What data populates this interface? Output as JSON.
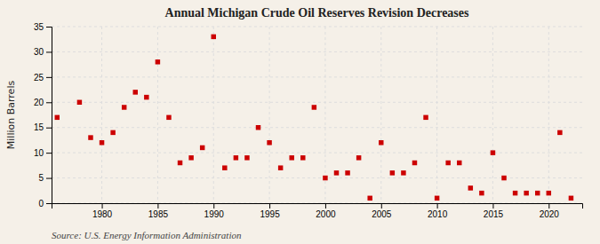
{
  "chart_data": {
    "type": "scatter",
    "title": "Annual Michigan Crude Oil Reserves Revision Decreases",
    "y_label": "Million Barrels",
    "source": "Source: U.S. Energy Information Administration",
    "x": [
      1976,
      1978,
      1979,
      1980,
      1981,
      1982,
      1983,
      1984,
      1985,
      1986,
      1987,
      1988,
      1989,
      1990,
      1991,
      1992,
      1993,
      1994,
      1995,
      1996,
      1997,
      1998,
      1999,
      2000,
      2001,
      2002,
      2003,
      2004,
      2005,
      2006,
      2007,
      2008,
      2009,
      2010,
      2011,
      2012,
      2013,
      2014,
      2015,
      2016,
      2017,
      2018,
      2019,
      2020,
      2021,
      2022
    ],
    "values": [
      17,
      20,
      13,
      12,
      14,
      19,
      22,
      21,
      28,
      17,
      8,
      9,
      11,
      33,
      7,
      9,
      9,
      15,
      12,
      7,
      9,
      9,
      19,
      5,
      6,
      6,
      9,
      1,
      12,
      6,
      6,
      8,
      17,
      1,
      8,
      8,
      3,
      2,
      10,
      5,
      2,
      2,
      2,
      2,
      14,
      1
    ],
    "color": "#cc0000",
    "marker": "square",
    "xlim": [
      1975.5,
      2023
    ],
    "ylim": [
      0,
      35
    ],
    "xticks": [
      1980,
      1985,
      1990,
      1995,
      2000,
      2005,
      2010,
      2015,
      2020
    ],
    "yticks": [
      0,
      5,
      10,
      15,
      20,
      25,
      30,
      35
    ],
    "grid": true
  }
}
